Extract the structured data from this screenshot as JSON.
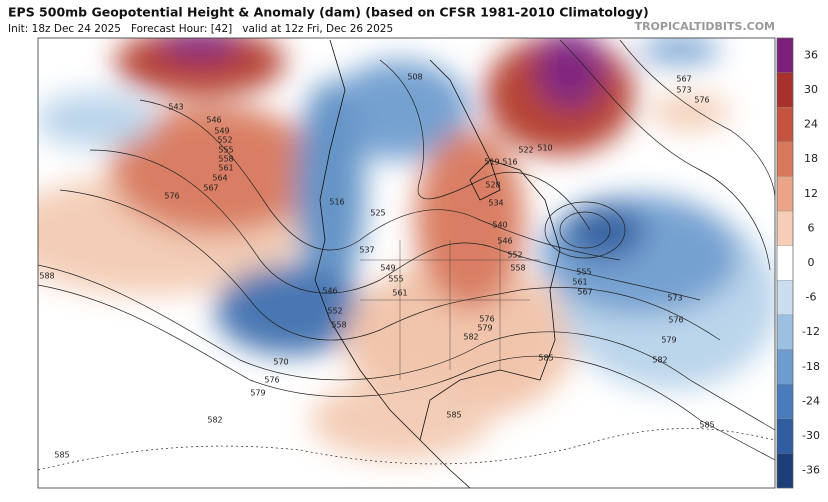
{
  "header": {
    "title": "EPS 500mb Geopotential Height & Anomaly (dam) (based on CFSR 1981-2010 Climatology)",
    "subtitle": "Init: 18z Dec 24 2025   Forecast Hour: [42]   valid at 12z Fri, Dec 26 2025",
    "watermark": "TROPICALTIDBITS.COM"
  },
  "colorbar": {
    "lim": [
      -39,
      39
    ],
    "ticks": [
      36,
      30,
      24,
      18,
      12,
      6,
      0,
      -6,
      -12,
      -18,
      -24,
      -30,
      -36
    ],
    "colors": [
      "#7a1f7a",
      "#a8322b",
      "#c4533f",
      "#d8785c",
      "#eaa487",
      "#f6cdb6",
      "#ffffff",
      "#c9ddef",
      "#9dc0e2",
      "#6e9ccf",
      "#4a7bbb",
      "#2f5d9f",
      "#1c3f7a"
    ]
  },
  "contour_labels": [
    588,
    585,
    582,
    579,
    576,
    570,
    576,
    543,
    546,
    549,
    552,
    555,
    558,
    561,
    564,
    567,
    508,
    510,
    519,
    516,
    522,
    528,
    534,
    540,
    546,
    552,
    558,
    516,
    525,
    537,
    549,
    555,
    561,
    546,
    552,
    558,
    576,
    579,
    582,
    585,
    585,
    585,
    567,
    573,
    576,
    555,
    561,
    567,
    573,
    576,
    579,
    582
  ]
}
